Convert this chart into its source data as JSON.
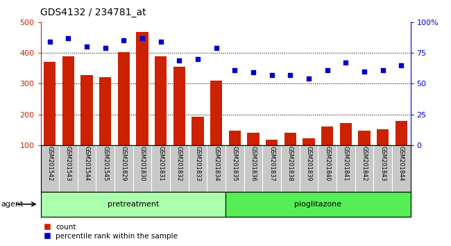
{
  "title": "GDS4132 / 234781_at",
  "categories": [
    "GSM201542",
    "GSM201543",
    "GSM201544",
    "GSM201545",
    "GSM201829",
    "GSM201830",
    "GSM201831",
    "GSM201832",
    "GSM201833",
    "GSM201834",
    "GSM201835",
    "GSM201836",
    "GSM201837",
    "GSM201838",
    "GSM201839",
    "GSM201840",
    "GSM201841",
    "GSM201842",
    "GSM201843",
    "GSM201844"
  ],
  "counts": [
    370,
    388,
    328,
    322,
    402,
    468,
    388,
    355,
    193,
    310,
    148,
    140,
    118,
    140,
    122,
    160,
    172,
    147,
    151,
    178
  ],
  "percentile_ranks": [
    84,
    87,
    80,
    79,
    85,
    87,
    84,
    69,
    70,
    79,
    61,
    59,
    57,
    57,
    54,
    61,
    67,
    60,
    61,
    65
  ],
  "ylim_left": [
    100,
    500
  ],
  "ylim_right": [
    0,
    100
  ],
  "yticks_left": [
    100,
    200,
    300,
    400,
    500
  ],
  "yticks_right": [
    0,
    25,
    50,
    75,
    100
  ],
  "bar_color": "#cc2200",
  "dot_color": "#0000cc",
  "bg_label_color": "#c8c8c8",
  "pretreatment_color": "#aaffaa",
  "pioglitazone_color": "#55ee55",
  "pretreatment_label": "pretreatment",
  "pioglitazone_label": "pioglitazone",
  "agent_label": "agent",
  "legend_count_label": "count",
  "legend_pct_label": "percentile rank within the sample",
  "n_pretreatment": 10,
  "n_pioglitazone": 10,
  "grid_lines": [
    200,
    300,
    400
  ]
}
